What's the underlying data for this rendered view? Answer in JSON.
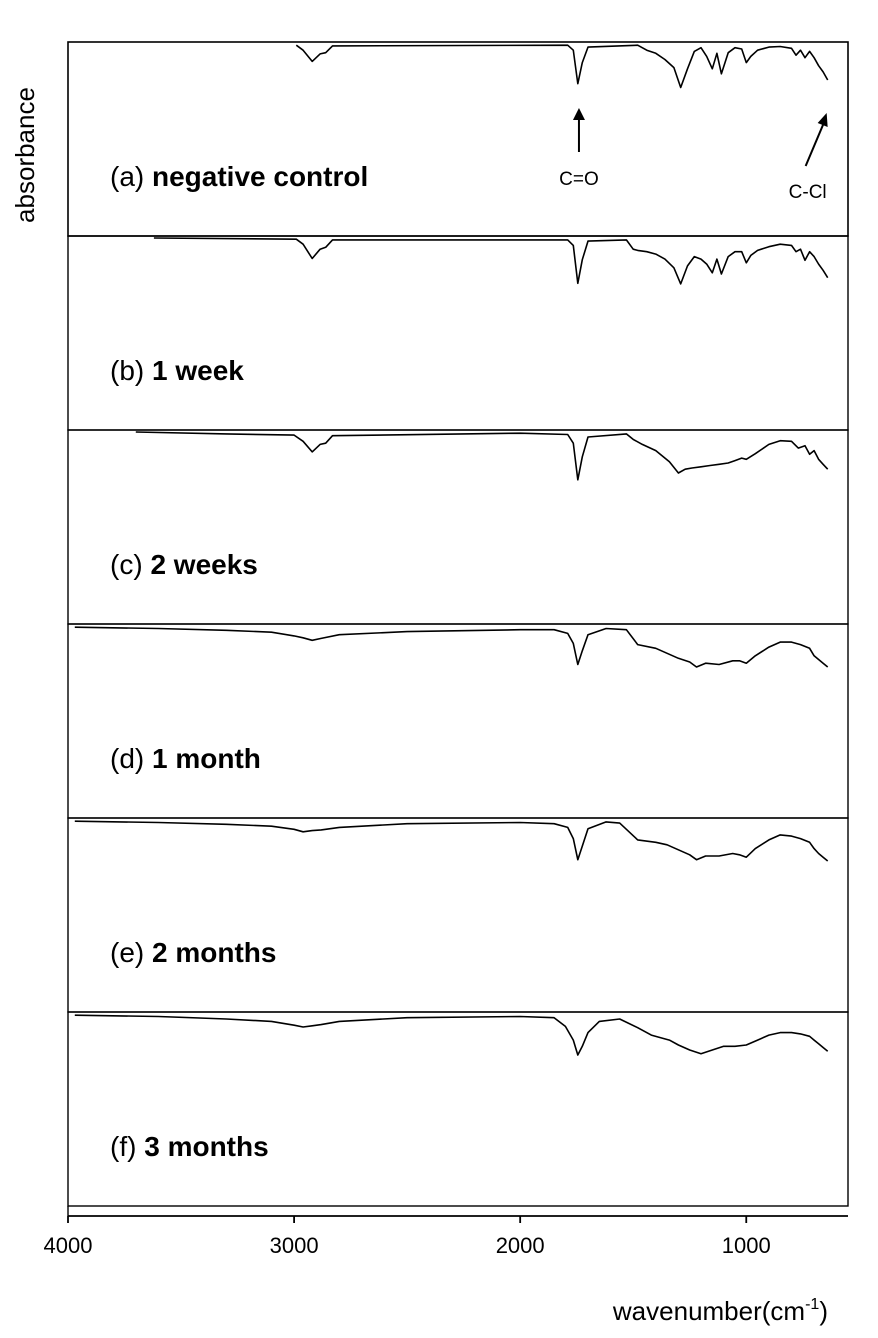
{
  "chart_data": {
    "type": "line",
    "xlabel": "wavenumber",
    "xlabel_unit": "(cm",
    "xlabel_unit_exp": "-1",
    "xlabel_unit_close": ")",
    "ylabel": "absorbance",
    "xlim": [
      4000,
      550
    ],
    "x_reversed": true,
    "x_ticks": [
      4000,
      3000,
      2000,
      1000
    ],
    "x_tick_labels": [
      "4000",
      "3000",
      "2000",
      "1000"
    ],
    "y_ticks_shown": false,
    "grid": false,
    "legend": "none",
    "panel_order": "top-to-bottom",
    "panels": [
      {
        "id": "a",
        "prefix": "(a) ",
        "label": "negative control",
        "color": "#000000",
        "x": [
          2990,
          2960,
          2920,
          2885,
          2860,
          2830,
          1790,
          1765,
          1745,
          1725,
          1700,
          1480,
          1440,
          1400,
          1360,
          1320,
          1290,
          1260,
          1230,
          1200,
          1175,
          1150,
          1130,
          1110,
          1080,
          1050,
          1020,
          1000,
          980,
          950,
          900,
          850,
          800,
          780,
          760,
          740,
          720,
          700,
          680,
          660,
          640
        ],
        "y": [
          0.02,
          0.1,
          0.28,
          0.16,
          0.14,
          0.03,
          0.02,
          0.1,
          0.64,
          0.3,
          0.05,
          0.02,
          0.1,
          0.15,
          0.25,
          0.38,
          0.7,
          0.4,
          0.12,
          0.06,
          0.2,
          0.4,
          0.15,
          0.48,
          0.14,
          0.06,
          0.08,
          0.3,
          0.2,
          0.1,
          0.05,
          0.04,
          0.07,
          0.18,
          0.1,
          0.22,
          0.12,
          0.22,
          0.35,
          0.45,
          0.58
        ],
        "annotations": [
          {
            "text": "C=O",
            "x": 1740,
            "arrow": "up"
          },
          {
            "text": "C-Cl",
            "x": 640,
            "arrow": "diagonal"
          }
        ]
      },
      {
        "id": "b",
        "prefix": "(b) ",
        "label": "1 week",
        "color": "#000000",
        "x": [
          3620,
          2990,
          2960,
          2920,
          2885,
          2860,
          2830,
          1790,
          1765,
          1745,
          1725,
          1700,
          1530,
          1500,
          1480,
          1440,
          1400,
          1360,
          1320,
          1290,
          1260,
          1230,
          1200,
          1175,
          1150,
          1130,
          1110,
          1080,
          1050,
          1020,
          1000,
          980,
          950,
          900,
          850,
          800,
          780,
          760,
          740,
          720,
          700,
          680,
          660,
          640
        ],
        "y": [
          0.0,
          0.02,
          0.1,
          0.33,
          0.18,
          0.15,
          0.03,
          0.03,
          0.12,
          0.73,
          0.35,
          0.05,
          0.03,
          0.18,
          0.2,
          0.22,
          0.26,
          0.34,
          0.48,
          0.74,
          0.45,
          0.3,
          0.34,
          0.42,
          0.56,
          0.34,
          0.58,
          0.3,
          0.22,
          0.22,
          0.4,
          0.28,
          0.2,
          0.14,
          0.1,
          0.12,
          0.22,
          0.18,
          0.36,
          0.22,
          0.3,
          0.42,
          0.52,
          0.64
        ]
      },
      {
        "id": "c",
        "prefix": "(c) ",
        "label": "2 weeks",
        "color": "#000000",
        "x": [
          3700,
          3300,
          3000,
          2960,
          2920,
          2885,
          2860,
          2830,
          2000,
          1790,
          1765,
          1745,
          1725,
          1700,
          1530,
          1500,
          1460,
          1400,
          1340,
          1300,
          1270,
          1240,
          1200,
          1160,
          1120,
          1080,
          1050,
          1020,
          1000,
          960,
          900,
          850,
          800,
          770,
          740,
          720,
          700,
          680,
          660,
          640
        ],
        "y": [
          0.0,
          0.03,
          0.05,
          0.15,
          0.32,
          0.2,
          0.18,
          0.06,
          0.02,
          0.04,
          0.18,
          0.77,
          0.4,
          0.08,
          0.03,
          0.12,
          0.2,
          0.3,
          0.48,
          0.66,
          0.6,
          0.58,
          0.56,
          0.54,
          0.52,
          0.5,
          0.46,
          0.42,
          0.44,
          0.35,
          0.2,
          0.14,
          0.15,
          0.26,
          0.22,
          0.36,
          0.3,
          0.44,
          0.52,
          0.6
        ]
      },
      {
        "id": "d",
        "prefix": "(d) ",
        "label": "1 month",
        "color": "#000000",
        "x": [
          3970,
          3600,
          3300,
          3100,
          3000,
          2960,
          2920,
          2880,
          2800,
          2500,
          2000,
          1850,
          1790,
          1765,
          1745,
          1725,
          1700,
          1620,
          1530,
          1480,
          1400,
          1350,
          1300,
          1250,
          1220,
          1180,
          1120,
          1060,
          1030,
          1000,
          960,
          900,
          850,
          800,
          760,
          720,
          700,
          680,
          660,
          640
        ],
        "y": [
          0.02,
          0.04,
          0.07,
          0.1,
          0.16,
          0.19,
          0.23,
          0.2,
          0.14,
          0.09,
          0.06,
          0.06,
          0.12,
          0.28,
          0.62,
          0.4,
          0.14,
          0.04,
          0.06,
          0.3,
          0.36,
          0.44,
          0.52,
          0.58,
          0.66,
          0.6,
          0.62,
          0.56,
          0.56,
          0.6,
          0.48,
          0.34,
          0.26,
          0.26,
          0.3,
          0.36,
          0.48,
          0.54,
          0.6,
          0.66
        ]
      },
      {
        "id": "e",
        "prefix": "(e) ",
        "label": "2 months",
        "color": "#000000",
        "x": [
          3970,
          3600,
          3300,
          3100,
          3000,
          2960,
          2920,
          2880,
          2800,
          2500,
          2000,
          1850,
          1790,
          1765,
          1745,
          1725,
          1700,
          1620,
          1560,
          1480,
          1400,
          1350,
          1300,
          1250,
          1220,
          1180,
          1120,
          1060,
          1030,
          1000,
          960,
          900,
          850,
          800,
          760,
          720,
          700,
          680,
          660,
          640
        ],
        "y": [
          0.02,
          0.04,
          0.07,
          0.1,
          0.15,
          0.19,
          0.17,
          0.16,
          0.12,
          0.06,
          0.04,
          0.06,
          0.12,
          0.3,
          0.64,
          0.42,
          0.14,
          0.03,
          0.05,
          0.32,
          0.36,
          0.4,
          0.48,
          0.56,
          0.64,
          0.58,
          0.58,
          0.54,
          0.56,
          0.6,
          0.46,
          0.32,
          0.24,
          0.26,
          0.3,
          0.36,
          0.46,
          0.54,
          0.6,
          0.66
        ]
      },
      {
        "id": "f",
        "prefix": "(f) ",
        "label": "3 months",
        "color": "#000000",
        "x": [
          3970,
          3600,
          3300,
          3100,
          3000,
          2960,
          2920,
          2880,
          2800,
          2500,
          2000,
          1850,
          1800,
          1765,
          1745,
          1725,
          1700,
          1650,
          1560,
          1480,
          1420,
          1380,
          1340,
          1300,
          1250,
          1200,
          1150,
          1100,
          1050,
          1000,
          950,
          900,
          850,
          800,
          760,
          720,
          700,
          680,
          660,
          640
        ],
        "y": [
          0.02,
          0.04,
          0.08,
          0.12,
          0.18,
          0.21,
          0.19,
          0.17,
          0.12,
          0.06,
          0.04,
          0.06,
          0.2,
          0.42,
          0.66,
          0.52,
          0.3,
          0.12,
          0.08,
          0.22,
          0.34,
          0.38,
          0.42,
          0.5,
          0.58,
          0.64,
          0.58,
          0.52,
          0.52,
          0.5,
          0.42,
          0.34,
          0.3,
          0.3,
          0.32,
          0.36,
          0.42,
          0.48,
          0.54,
          0.6
        ]
      }
    ]
  }
}
